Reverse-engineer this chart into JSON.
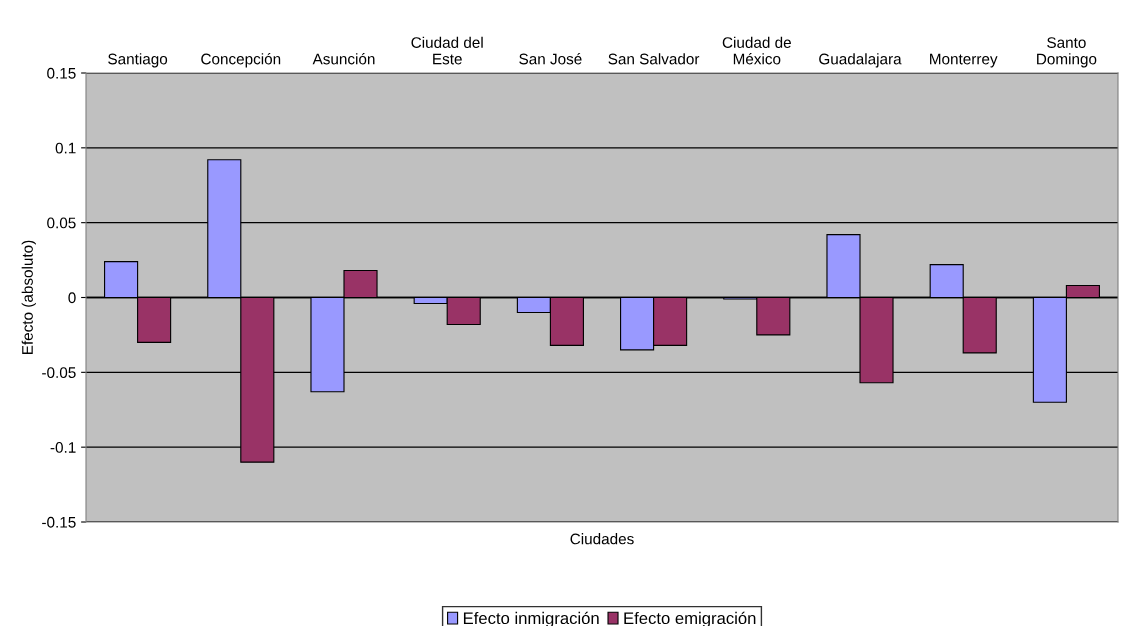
{
  "chart_data": {
    "type": "bar",
    "xlabel": "Ciudades",
    "ylabel": "Efecto (absoluto)",
    "categories": [
      "Santiago",
      "Concepción",
      "Asunción",
      "Ciudad del Este",
      "San José",
      "San Salvador",
      "Ciudad de México",
      "Guadalajara",
      "Monterrey",
      "Santo Domingo"
    ],
    "series": [
      {
        "name": "Efecto inmigración",
        "color": "#9999ff",
        "values": [
          0.024,
          0.092,
          -0.063,
          -0.004,
          -0.01,
          -0.035,
          -0.001,
          0.042,
          0.022,
          -0.07
        ]
      },
      {
        "name": "Efecto emigración",
        "color": "#993366",
        "values": [
          -0.03,
          -0.11,
          0.018,
          -0.018,
          -0.032,
          -0.032,
          -0.025,
          -0.057,
          -0.037,
          0.008
        ]
      }
    ],
    "ylim": [
      -0.15,
      0.15
    ],
    "yticks": [
      -0.15,
      -0.1,
      -0.05,
      0,
      0.05,
      0.1,
      0.15
    ],
    "grid": "y",
    "legend": "bottom"
  }
}
